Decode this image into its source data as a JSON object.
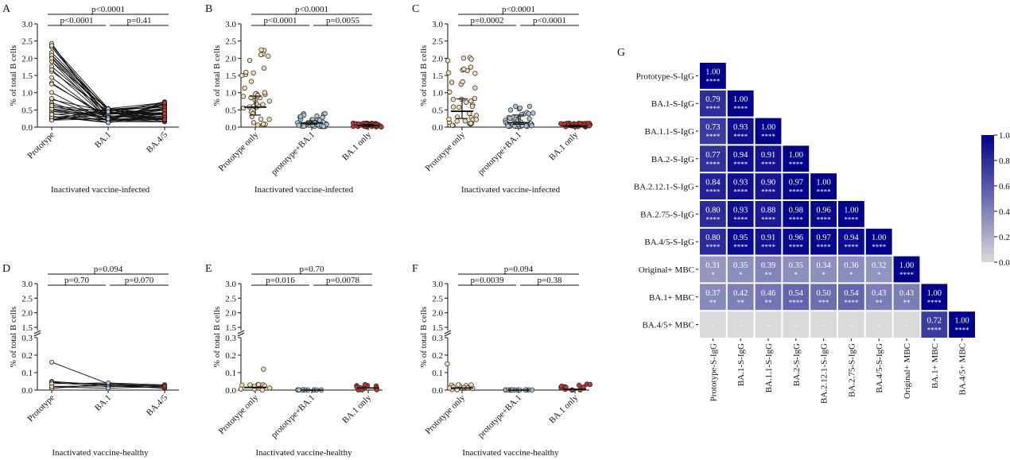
{
  "panels": {
    "A": {
      "letter": "A",
      "type": "paired-line",
      "ylabel": "% of total B cells",
      "xlabel": "Inactivated vaccine-infected",
      "categories": [
        "Prototype",
        "BA.1",
        "BA.4/5"
      ],
      "yticks": [
        "0.0",
        "0.5",
        "1.0",
        "1.5",
        "2.0",
        "2.5",
        "3.0"
      ],
      "medians": [
        0.75,
        0.2,
        0.3
      ],
      "comparisons": [
        {
          "label": "p<0.0001",
          "from": 0,
          "to": 2
        },
        {
          "label": "p<0.0001",
          "from": 0,
          "to": 1
        },
        {
          "label": "p=0.41",
          "from": 1,
          "to": 2
        }
      ]
    },
    "B": {
      "letter": "B",
      "type": "scatter",
      "ylabel": "% of total B cells",
      "xlabel": "Inactivated vaccine-infected",
      "categories": [
        "Prototype only",
        "prototype+BA.1",
        "BA.1 only"
      ],
      "yticks": [
        "0.0",
        "0.5",
        "1.0",
        "1.5",
        "2.0",
        "2.5",
        "3.0"
      ],
      "medians": [
        0.58,
        0.12,
        0.05
      ],
      "iqr": [
        [
          0.35,
          0.9
        ],
        [
          0.08,
          0.18
        ],
        [
          0.02,
          0.08
        ]
      ],
      "comparisons": [
        {
          "label": "p<0.0001",
          "from": 0,
          "to": 2
        },
        {
          "label": "p<0.0001",
          "from": 0,
          "to": 1
        },
        {
          "label": "p=0.0055",
          "from": 1,
          "to": 2
        }
      ]
    },
    "C": {
      "letter": "C",
      "type": "scatter",
      "ylabel": "% of total B cells",
      "xlabel": "Inactivated vaccine-infected",
      "categories": [
        "Prototype only",
        "prototype+BA.1",
        "BA.1 only"
      ],
      "yticks": [
        "0.0",
        "0.5",
        "1.0",
        "1.5",
        "2.0",
        "2.5",
        "3.0"
      ],
      "medians": [
        0.46,
        0.13,
        0.03
      ],
      "iqr": [
        [
          0.25,
          0.82
        ],
        [
          0.08,
          0.35
        ],
        [
          0.01,
          0.06
        ]
      ],
      "comparisons": [
        {
          "label": "p<0.0001",
          "from": 0,
          "to": 2
        },
        {
          "label": "p=0.0002",
          "from": 0,
          "to": 1
        },
        {
          "label": "p<0.0001",
          "from": 1,
          "to": 2
        }
      ]
    },
    "D": {
      "letter": "D",
      "type": "paired-line",
      "ylabel": "% of total B cells",
      "xlabel": "Inactivated vaccine-healthy",
      "categories": [
        "Prototype",
        "BA.1",
        "BA.4/5"
      ],
      "yticks_low": [
        "0.0",
        "0.1",
        "0.2",
        "0.3"
      ],
      "yticks_high": [
        "1.5",
        "2.0",
        "2.5",
        "3.0"
      ],
      "medians": [
        0.02,
        0.03,
        0.02
      ],
      "comparisons": [
        {
          "label": "p=0.094",
          "from": 0,
          "to": 2
        },
        {
          "label": "p=0.70",
          "from": 0,
          "to": 1
        },
        {
          "label": "p=0.070",
          "from": 1,
          "to": 2
        }
      ]
    },
    "E": {
      "letter": "E",
      "type": "scatter",
      "ylabel": "% of total B cells",
      "xlabel": "Inactivated vaccine-healthy",
      "categories": [
        "Prototype only",
        "prototype+BA.1",
        "BA.1 only"
      ],
      "yticks_low": [
        "0.0",
        "0.1",
        "0.2",
        "0.3"
      ],
      "yticks_high": [
        "1.5",
        "2.0",
        "2.5",
        "3.0"
      ],
      "medians": [
        0.015,
        0.0,
        0.012
      ],
      "comparisons": [
        {
          "label": "p=0.70",
          "from": 0,
          "to": 2
        },
        {
          "label": "p=0.016",
          "from": 0,
          "to": 1
        },
        {
          "label": "p=0.0078",
          "from": 1,
          "to": 2
        }
      ]
    },
    "F": {
      "letter": "F",
      "type": "scatter",
      "ylabel": "% of total B cells",
      "xlabel": "Inactivated vaccine-healthy",
      "categories": [
        "Prototype only",
        "prototype+BA.1",
        "BA.1 only"
      ],
      "yticks_low": [
        "0.0",
        "0.1",
        "0.2",
        "0.3"
      ],
      "yticks_high": [
        "1.5",
        "2.0",
        "2.5",
        "3.0"
      ],
      "medians": [
        0.012,
        0.0,
        0.005
      ],
      "comparisons": [
        {
          "label": "p=0.094",
          "from": 0,
          "to": 2
        },
        {
          "label": "p=0.0039",
          "from": 0,
          "to": 1
        },
        {
          "label": "p=0.38",
          "from": 1,
          "to": 2
        }
      ]
    }
  },
  "chart_data": {
    "type": "heatmap",
    "title": "",
    "letter": "G",
    "labels": [
      "Prototype-S-IgG",
      "BA.1-S-IgG",
      "BA.1.1-S-IgG",
      "BA.2-S-IgG",
      "BA.2.12.1-S-IgG",
      "BA.2.75-S-IgG",
      "BA.4/5-S-IgG",
      "Original+ MBC",
      "BA.1+ MBC",
      "BA.4/5+ MBC"
    ],
    "matrix": [
      [
        [
          "1.00",
          "****"
        ]
      ],
      [
        [
          "0.79",
          "****"
        ],
        [
          "1.00",
          "****"
        ]
      ],
      [
        [
          "0.73",
          "****"
        ],
        [
          "0.93",
          "****"
        ],
        [
          "1.00",
          "****"
        ]
      ],
      [
        [
          "0.77",
          "****"
        ],
        [
          "0.94",
          "****"
        ],
        [
          "0.91",
          "****"
        ],
        [
          "1.00",
          "****"
        ]
      ],
      [
        [
          "0.84",
          "****"
        ],
        [
          "0.93",
          "****"
        ],
        [
          "0.90",
          "****"
        ],
        [
          "0.97",
          "****"
        ],
        [
          "1.00",
          "****"
        ]
      ],
      [
        [
          "0.80",
          "****"
        ],
        [
          "0.93",
          "****"
        ],
        [
          "0.88",
          "****"
        ],
        [
          "0.98",
          "****"
        ],
        [
          "0.96",
          "****"
        ],
        [
          "1.00",
          "****"
        ]
      ],
      [
        [
          "0.80",
          "****"
        ],
        [
          "0.95",
          "****"
        ],
        [
          "0.91",
          "****"
        ],
        [
          "0.96",
          "****"
        ],
        [
          "0.97",
          "****"
        ],
        [
          "0.94",
          "****"
        ],
        [
          "1.00",
          "****"
        ]
      ],
      [
        [
          "0.31",
          "*"
        ],
        [
          "0.35",
          "*"
        ],
        [
          "0.39",
          "**"
        ],
        [
          "0.35",
          "*"
        ],
        [
          "0.34",
          "*"
        ],
        [
          "0.36",
          "*"
        ],
        [
          "0.32",
          "*"
        ],
        [
          "1.00",
          "****"
        ]
      ],
      [
        [
          "0.37",
          "**"
        ],
        [
          "0.42",
          "**"
        ],
        [
          "0.46",
          "**"
        ],
        [
          "0.54",
          "****"
        ],
        [
          "0.50",
          "***"
        ],
        [
          "0.54",
          "****"
        ],
        [
          "0.43",
          "**"
        ],
        [
          "0.43",
          "**"
        ],
        [
          "1.00",
          "****"
        ]
      ],
      [
        [
          "-",
          ""
        ],
        [
          "-",
          ""
        ],
        [
          "-",
          ""
        ],
        [
          "-",
          ""
        ],
        [
          "-",
          ""
        ],
        [
          "-",
          ""
        ],
        [
          "-",
          ""
        ],
        [
          "-",
          ""
        ],
        [
          "0.72",
          "****"
        ],
        [
          "1.00",
          "****"
        ]
      ]
    ],
    "colorbar": {
      "min": 0.0,
      "max": 1.0,
      "ticks": [
        "0.0",
        "0.2",
        "0.4",
        "0.6",
        "0.8",
        "1.0"
      ],
      "color_low": "#d9d9d9",
      "color_high": "#00008b"
    }
  }
}
